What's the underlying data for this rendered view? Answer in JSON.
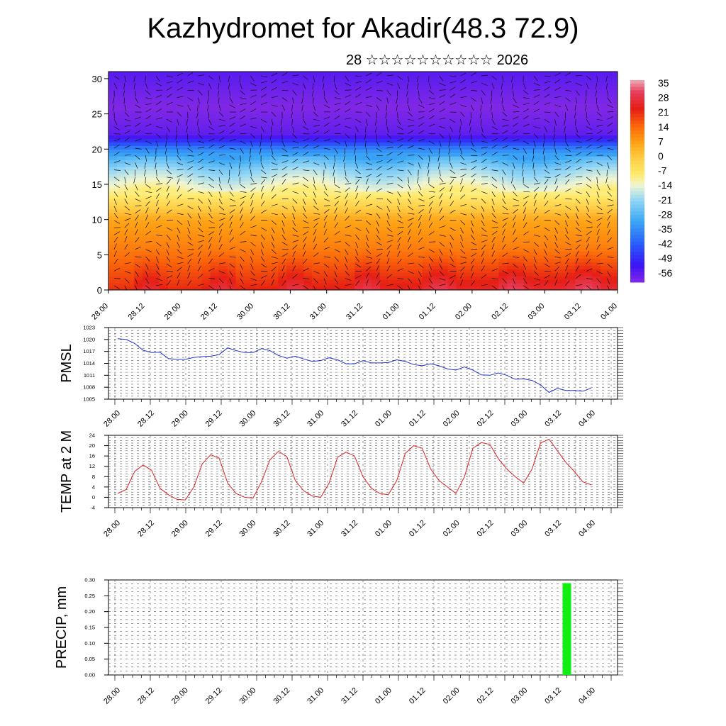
{
  "title": "Kazhydromet for Akadir(48.3 72.9)",
  "subtitle": "28 ☆☆☆☆☆☆☆☆☆☆ 2026",
  "time_labels": [
    "28.00",
    "28.12",
    "29.00",
    "29.12",
    "30.00",
    "30.12",
    "31.00",
    "31.12",
    "01.00",
    "01.12",
    "02.00",
    "02.12",
    "03.00",
    "03.12",
    "04.00"
  ],
  "chart_data": [
    {
      "type": "heatmap",
      "title": "",
      "ylabel": "",
      "ylim": [
        0,
        31
      ],
      "yticks": [
        "0",
        "5",
        "10",
        "15",
        "20",
        "25",
        "30"
      ],
      "colorbar_ticks": [
        "35",
        "28",
        "21",
        "14",
        "7",
        "0",
        "-7",
        "-14",
        "-21",
        "-28",
        "-35",
        "-42",
        "-49",
        "-56"
      ],
      "colorbar_range": [
        -60,
        38
      ],
      "description_levels": [
        {
          "height": 0,
          "temp": 22
        },
        {
          "height": 5,
          "temp": 14
        },
        {
          "height": 10,
          "temp": 7
        },
        {
          "height": 14,
          "temp": -10
        },
        {
          "height": 17,
          "temp": -20
        },
        {
          "height": 20,
          "temp": -35
        },
        {
          "height": 22,
          "temp": -56
        },
        {
          "height": 26,
          "temp": -60
        },
        {
          "height": 31,
          "temp": -55
        }
      ],
      "overlay": "wind barbs"
    },
    {
      "type": "line",
      "ylabel": "PMSL",
      "ylim": [
        1005,
        1023
      ],
      "yticks": [
        "1005",
        "1008",
        "1011",
        "1014",
        "1017",
        "1020",
        "1023"
      ],
      "series": [
        {
          "color": "#2233cc",
          "values": [
            1020.2,
            1020.0,
            1019.0,
            1017.3,
            1016.7,
            1016.8,
            1015.2,
            1015.0,
            1015.0,
            1015.5,
            1015.7,
            1015.8,
            1016.2,
            1017.9,
            1017.2,
            1016.7,
            1016.7,
            1017.7,
            1017.2,
            1016.0,
            1015.3,
            1015.8,
            1015.1,
            1014.5,
            1014.7,
            1015.4,
            1014.9,
            1013.9,
            1013.9,
            1014.7,
            1014.1,
            1014.1,
            1014.2,
            1014.9,
            1014.5,
            1013.7,
            1013.4,
            1013.9,
            1013.4,
            1012.6,
            1012.3,
            1013.1,
            1012.3,
            1011.1,
            1011.0,
            1011.6,
            1011.0,
            1010.0,
            1010.1,
            1009.7,
            1008.6,
            1006.7,
            1007.7,
            1007.2,
            1007.2,
            1007.0,
            1007.8
          ]
        }
      ]
    },
    {
      "type": "line",
      "ylabel": "TEMP at 2 M",
      "ylim": [
        -4,
        24
      ],
      "yticks": [
        "-4",
        "0",
        "4",
        "8",
        "12",
        "16",
        "20",
        "24"
      ],
      "series": [
        {
          "color": "#dd2222",
          "values": [
            1.5,
            3.0,
            10.0,
            12.5,
            10.5,
            3.5,
            1.0,
            -0.8,
            -1.0,
            4.0,
            13.0,
            16.5,
            15.2,
            5.5,
            1.5,
            0.0,
            -0.3,
            6.0,
            14.5,
            17.8,
            15.8,
            6.5,
            2.5,
            0.5,
            0.0,
            5.5,
            15.5,
            17.5,
            16.0,
            8.0,
            3.5,
            1.5,
            1.0,
            6.5,
            17.0,
            20.0,
            19.0,
            11.0,
            6.5,
            4.0,
            1.5,
            8.0,
            19.0,
            21.2,
            20.5,
            15.0,
            11.0,
            8.0,
            5.5,
            11.0,
            21.0,
            22.5,
            18.0,
            13.5,
            10.0,
            6.0,
            4.8
          ]
        }
      ]
    },
    {
      "type": "bar",
      "ylabel": "PRECIP, mm",
      "ylim": [
        0,
        0.3
      ],
      "yticks": [
        "0.00",
        "0.05",
        "0.10",
        "0.15",
        "0.20",
        "0.25",
        "0.30"
      ],
      "series": [
        {
          "color": "#11ee11",
          "bars": [
            {
              "time": 12.75,
              "value": 0.29
            }
          ]
        }
      ]
    }
  ]
}
